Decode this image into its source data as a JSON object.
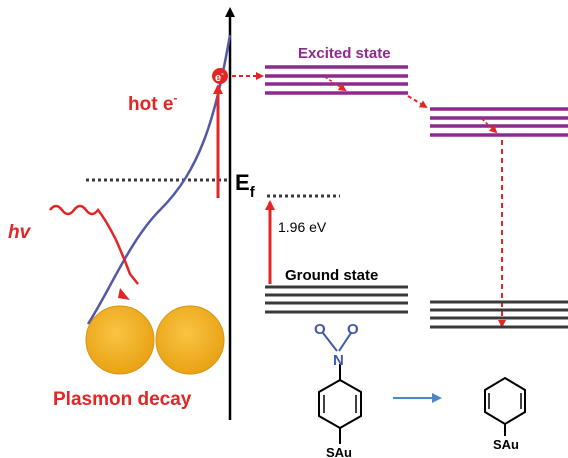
{
  "labels": {
    "hot_electron": "hot e",
    "hot_electron_superscript": "-",
    "electron_symbol": "e",
    "electron_symbol_superscript": "-",
    "fermi_level": "E",
    "fermi_level_subscript": "f",
    "photon": "hv",
    "plasmon_decay": "Plasmon decay",
    "excited_state": "Excited state",
    "ground_state": "Ground state",
    "transition_energy": "1.96 eV",
    "nitro_oxygen_1": "O",
    "nitro_oxygen_2": "O",
    "nitro_nitrogen": "N",
    "reactant_anchor": "SAu",
    "product_anchor": "SAu"
  },
  "colors": {
    "red": "#e32526",
    "purple": "#8e2a8e",
    "dark": "#3a3a3a",
    "blue_curve": "#5358a8",
    "nanoparticle": "#f2b020",
    "nanoparticle_edge": "#d69416",
    "molecule_blue": "#3f5aa8",
    "reaction_arrow": "#4d86c6"
  }
}
